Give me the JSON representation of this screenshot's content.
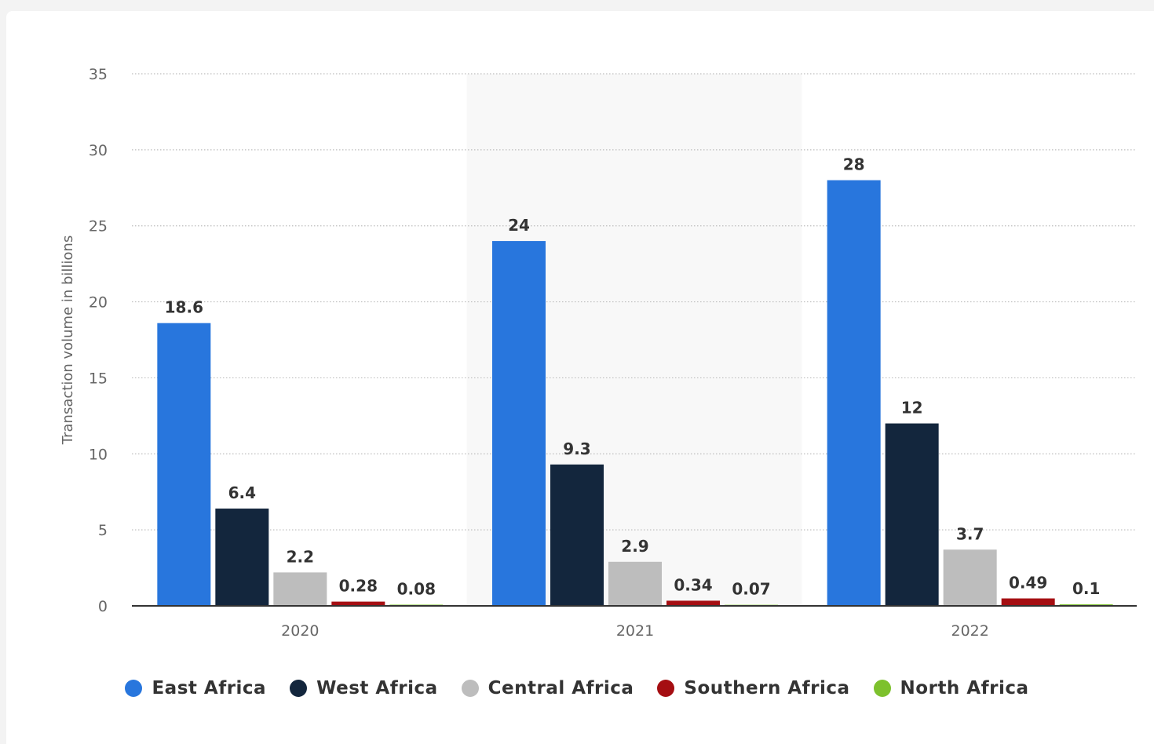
{
  "chart_data": {
    "type": "bar",
    "title": "",
    "xlabel": "",
    "ylabel": "Transaction volume in billions",
    "ylim": [
      0,
      35
    ],
    "yticks": [
      0,
      5,
      10,
      15,
      20,
      25,
      30,
      35
    ],
    "grid": true,
    "legend_position": "bottom",
    "categories": [
      "2020",
      "2021",
      "2022"
    ],
    "highlighted_category": "2021",
    "series": [
      {
        "name": "East Africa",
        "color": "#2876dd",
        "values": [
          18.6,
          24,
          28
        ],
        "labels": [
          "18.6",
          "24",
          "28"
        ]
      },
      {
        "name": "West Africa",
        "color": "#13263d",
        "values": [
          6.4,
          9.3,
          12
        ],
        "labels": [
          "6.4",
          "9.3",
          "12"
        ]
      },
      {
        "name": "Central Africa",
        "color": "#bdbdbd",
        "values": [
          2.2,
          2.9,
          3.7
        ],
        "labels": [
          "2.2",
          "2.9",
          "3.7"
        ]
      },
      {
        "name": "Southern Africa",
        "color": "#a50e12",
        "values": [
          0.28,
          0.34,
          0.49
        ],
        "labels": [
          "0.28",
          "0.34",
          "0.49"
        ]
      },
      {
        "name": "North Africa",
        "color": "#7dc12d",
        "values": [
          0.08,
          0.07,
          0.1
        ],
        "labels": [
          "0.08",
          "0.07",
          "0.1"
        ]
      }
    ]
  }
}
